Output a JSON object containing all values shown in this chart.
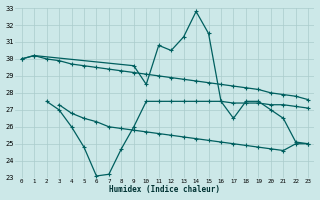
{
  "xlabel": "Humidex (Indice chaleur)",
  "x": [
    0,
    1,
    2,
    3,
    4,
    5,
    6,
    7,
    8,
    9,
    10,
    11,
    12,
    13,
    14,
    15,
    16,
    17,
    18,
    19,
    20,
    21,
    22,
    23
  ],
  "line1": [
    30.0,
    30.2,
    30.0,
    29.9,
    29.7,
    29.6,
    29.5,
    29.4,
    29.3,
    29.2,
    29.1,
    29.0,
    28.9,
    28.8,
    28.7,
    28.6,
    28.5,
    28.4,
    28.3,
    28.2,
    28.0,
    27.9,
    27.8,
    27.6
  ],
  "line2": [
    null,
    null,
    27.5,
    27.0,
    26.0,
    24.8,
    23.1,
    23.2,
    24.7,
    26.0,
    27.5,
    27.5,
    27.5,
    27.5,
    27.5,
    27.5,
    27.5,
    27.4,
    27.4,
    27.4,
    27.3,
    27.3,
    27.2,
    27.1
  ],
  "line3": [
    null,
    null,
    null,
    27.3,
    26.8,
    26.5,
    26.3,
    26.0,
    25.9,
    25.8,
    25.7,
    25.6,
    25.5,
    25.4,
    25.3,
    25.2,
    25.1,
    25.0,
    24.9,
    24.8,
    24.7,
    24.6,
    25.0,
    25.0
  ],
  "line4": [
    30.0,
    30.2,
    null,
    null,
    null,
    null,
    null,
    null,
    null,
    29.6,
    28.5,
    30.8,
    30.5,
    31.3,
    32.8,
    31.5,
    27.5,
    26.5,
    27.5,
    27.5,
    27.0,
    26.5,
    25.1,
    25.0
  ],
  "bg_color": "#cce8e8",
  "grid_color": "#aacccc",
  "line_color": "#005f5f",
  "ylim": [
    23,
    33
  ],
  "yticks": [
    23,
    24,
    25,
    26,
    27,
    28,
    29,
    30,
    31,
    32,
    33
  ],
  "xticks": [
    0,
    1,
    2,
    3,
    4,
    5,
    6,
    7,
    8,
    9,
    10,
    11,
    12,
    13,
    14,
    15,
    16,
    17,
    18,
    19,
    20,
    21,
    22,
    23
  ]
}
